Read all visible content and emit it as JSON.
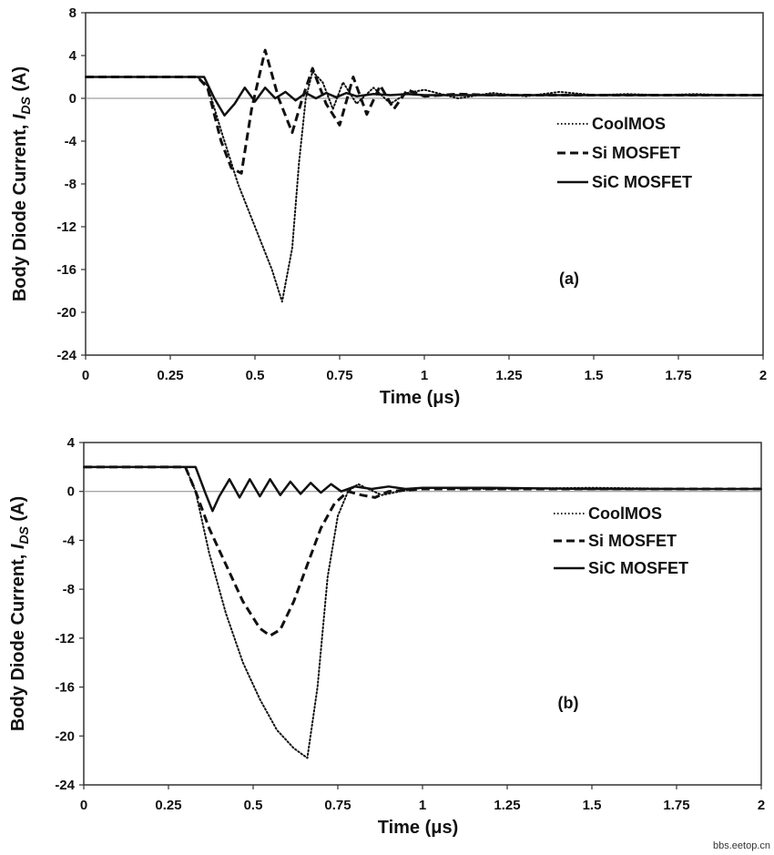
{
  "chart_data": [
    {
      "type": "line",
      "panel_label": "(a)",
      "xlabel": "Time (μs)",
      "ylabel_main": "Body Diode Current, ",
      "ylabel_sym": "I",
      "ylabel_sub": "DS",
      "ylabel_unit": " (A)",
      "xlim": [
        0,
        2
      ],
      "ylim": [
        -24,
        8
      ],
      "xticks": [
        0,
        0.25,
        0.5,
        0.75,
        1,
        1.25,
        1.5,
        1.75,
        2
      ],
      "xtick_labels": [
        "0",
        "0.25",
        "0.5",
        "0.75",
        "1",
        "1.25",
        "1.5",
        "1.75",
        "2"
      ],
      "yticks": [
        -24,
        -20,
        -16,
        -12,
        -8,
        -4,
        0,
        4,
        8
      ],
      "ytick_labels": [
        "-24",
        "-20",
        "-16",
        "-12",
        "-8",
        "-4",
        "0",
        "4",
        "8"
      ],
      "legend_position": "right-middle",
      "series": [
        {
          "name": "CoolMOS",
          "style": "dotted",
          "x": [
            0,
            0.33,
            0.36,
            0.4,
            0.45,
            0.5,
            0.55,
            0.58,
            0.61,
            0.63,
            0.65,
            0.67,
            0.7,
            0.73,
            0.76,
            0.8,
            0.85,
            0.9,
            0.95,
            1.0,
            1.1,
            1.2,
            1.3,
            1.4,
            1.5,
            1.6,
            1.7,
            1.8,
            1.9,
            2.0
          ],
          "y": [
            2,
            2,
            1.2,
            -3,
            -8,
            -12,
            -16,
            -19,
            -14,
            -6,
            0,
            2.5,
            1.5,
            -1,
            1.5,
            -0.5,
            1,
            -0.5,
            0.5,
            0.8,
            0,
            0.5,
            0.2,
            0.6,
            0.3,
            0.4,
            0.3,
            0.4,
            0.3,
            0.3
          ]
        },
        {
          "name": "Si MOSFET",
          "style": "dashed",
          "x": [
            0,
            0.33,
            0.36,
            0.4,
            0.43,
            0.46,
            0.49,
            0.53,
            0.57,
            0.61,
            0.64,
            0.67,
            0.71,
            0.75,
            0.79,
            0.83,
            0.87,
            0.91,
            0.95,
            1.0,
            1.1,
            1.2,
            1.3,
            1.4,
            1.5,
            1.6,
            1.7,
            1.8,
            1.9,
            2.0
          ],
          "y": [
            2,
            2,
            1,
            -4,
            -6.5,
            -7,
            -1,
            4.5,
            0,
            -3.2,
            0,
            2.8,
            -0.5,
            -2.5,
            2,
            -1.5,
            1.2,
            -1,
            0.8,
            0.2,
            0.4,
            0.3,
            0.3,
            0.3,
            0.3,
            0.3,
            0.3,
            0.3,
            0.3,
            0.3
          ]
        },
        {
          "name": "SiC MOSFET",
          "style": "solid",
          "x": [
            0,
            0.35,
            0.38,
            0.41,
            0.44,
            0.47,
            0.5,
            0.53,
            0.56,
            0.59,
            0.62,
            0.65,
            0.68,
            0.71,
            0.74,
            0.77,
            0.8,
            0.85,
            0.9,
            0.95,
            1.0,
            1.2,
            1.5,
            1.8,
            2.0
          ],
          "y": [
            2,
            2,
            0,
            -1.6,
            -0.5,
            1.0,
            -0.3,
            1.0,
            0,
            0.6,
            -0.2,
            0.5,
            0,
            0.5,
            0.1,
            0.5,
            0.2,
            0.4,
            0.3,
            0.4,
            0.3,
            0.3,
            0.3,
            0.3,
            0.3
          ]
        }
      ]
    },
    {
      "type": "line",
      "panel_label": "(b)",
      "xlabel": "Time (μs)",
      "ylabel_main": "Body Diode Current, ",
      "ylabel_sym": "I",
      "ylabel_sub": "DS",
      "ylabel_unit": " (A)",
      "xlim": [
        0,
        2
      ],
      "ylim": [
        -24,
        4
      ],
      "xticks": [
        0,
        0.25,
        0.5,
        0.75,
        1,
        1.25,
        1.5,
        1.75,
        2
      ],
      "xtick_labels": [
        "0",
        "0.25",
        "0.5",
        "0.75",
        "1",
        "1.25",
        "1.5",
        "1.75",
        "2"
      ],
      "yticks": [
        -24,
        -20,
        -16,
        -12,
        -8,
        -4,
        0,
        4
      ],
      "ytick_labels": [
        "-24",
        "-20",
        "-16",
        "-12",
        "-8",
        "-4",
        "0",
        "4"
      ],
      "legend_position": "right-middle",
      "series": [
        {
          "name": "CoolMOS",
          "style": "dotted",
          "x": [
            0,
            0.3,
            0.33,
            0.37,
            0.42,
            0.47,
            0.52,
            0.57,
            0.62,
            0.66,
            0.69,
            0.72,
            0.75,
            0.78,
            0.81,
            0.84,
            0.88,
            0.95,
            1.0,
            1.2,
            1.5,
            1.8,
            2.0
          ],
          "y": [
            2,
            2,
            0,
            -5,
            -10,
            -14,
            -17,
            -19.5,
            -21,
            -21.8,
            -16,
            -7,
            -2,
            0,
            0.6,
            0.2,
            -0.3,
            0.1,
            0.3,
            0.2,
            0.3,
            0.2,
            0.2
          ]
        },
        {
          "name": "Si MOSFET",
          "style": "dashed",
          "x": [
            0,
            0.3,
            0.33,
            0.37,
            0.42,
            0.47,
            0.52,
            0.55,
            0.58,
            0.62,
            0.66,
            0.7,
            0.74,
            0.78,
            0.82,
            0.86,
            0.9,
            1.0,
            1.2,
            1.5,
            1.8,
            2.0
          ],
          "y": [
            2,
            2,
            0,
            -3,
            -6,
            -9,
            -11.2,
            -11.8,
            -11.3,
            -9,
            -6,
            -3,
            -1,
            0,
            -0.3,
            -0.5,
            0,
            0.2,
            0.2,
            0.2,
            0.2,
            0.2
          ]
        },
        {
          "name": "SiC MOSFET",
          "style": "solid",
          "x": [
            0,
            0.33,
            0.36,
            0.38,
            0.4,
            0.43,
            0.46,
            0.49,
            0.52,
            0.55,
            0.58,
            0.61,
            0.64,
            0.67,
            0.7,
            0.73,
            0.76,
            0.8,
            0.85,
            0.9,
            0.95,
            1.0,
            1.2,
            1.5,
            1.8,
            2.0
          ],
          "y": [
            2,
            2,
            -0.2,
            -1.6,
            -0.4,
            1.0,
            -0.5,
            1.0,
            -0.4,
            1.0,
            -0.3,
            0.8,
            -0.2,
            0.7,
            -0.1,
            0.6,
            0,
            0.4,
            0.2,
            0.4,
            0.2,
            0.3,
            0.3,
            0.2,
            0.2,
            0.2
          ]
        }
      ]
    }
  ],
  "watermark": "bbs.eetop.cn"
}
